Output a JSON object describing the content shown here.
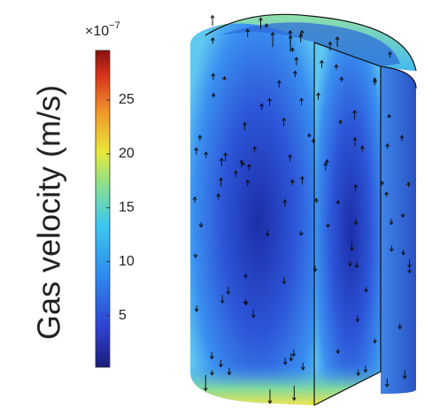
{
  "colorbar": {
    "label": "Gas velocity (m/s)",
    "multiplier": "×10",
    "exponent": "−7",
    "range": [
      0.2,
      29.6
    ],
    "ticks": [
      5,
      10,
      15,
      20,
      25
    ]
  }
}
